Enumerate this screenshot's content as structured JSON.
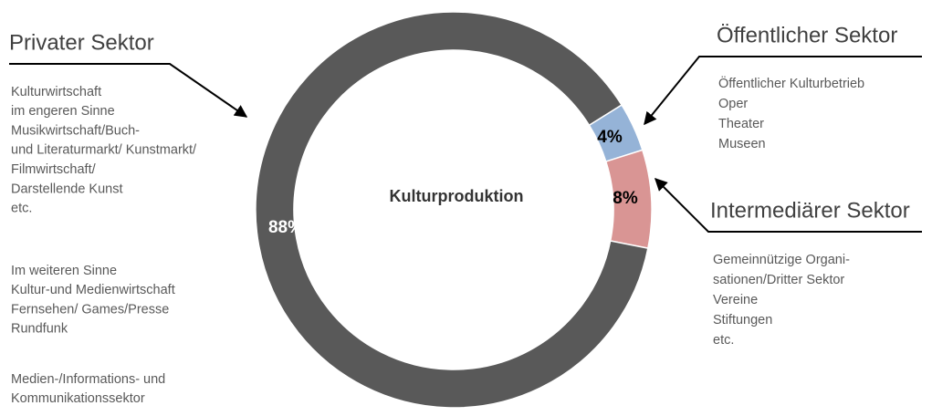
{
  "chart_data": {
    "type": "donut",
    "center_label": "Kulturproduktion",
    "categories": [
      "Öffentlicher Sektor",
      "Intermediärer Sektor",
      "Privater Sektor"
    ],
    "values": [
      4,
      8,
      88
    ],
    "value_labels": [
      "4%",
      "8%",
      "88%"
    ],
    "colors": [
      "#95b3d7",
      "#d99594",
      "#595959"
    ],
    "descriptions": [
      [
        [
          "Öffentlicher Kulturbetrieb",
          "Oper",
          "Theater",
          "Museen"
        ]
      ],
      [
        [
          "Gemeinnützige Organi-",
          "sationen/Dritter Sektor",
          "Vereine",
          "Stiftungen",
          "etc."
        ]
      ],
      [
        [
          "Kulturwirtschaft",
          "im engeren Sinne",
          "Musikwirtschaft/Buch-",
          "und Literaturmarkt/ Kunstmarkt/",
          "Filmwirtschaft/",
          "Darstellende Kunst",
          "etc."
        ],
        [
          "Im weiteren Sinne",
          "Kultur-und Medienwirtschaft",
          "Fernsehen/ Games/Presse",
          "Rundfunk"
        ],
        [
          "Medien-/Informations- und",
          "Kommunikationssektor"
        ]
      ]
    ]
  }
}
